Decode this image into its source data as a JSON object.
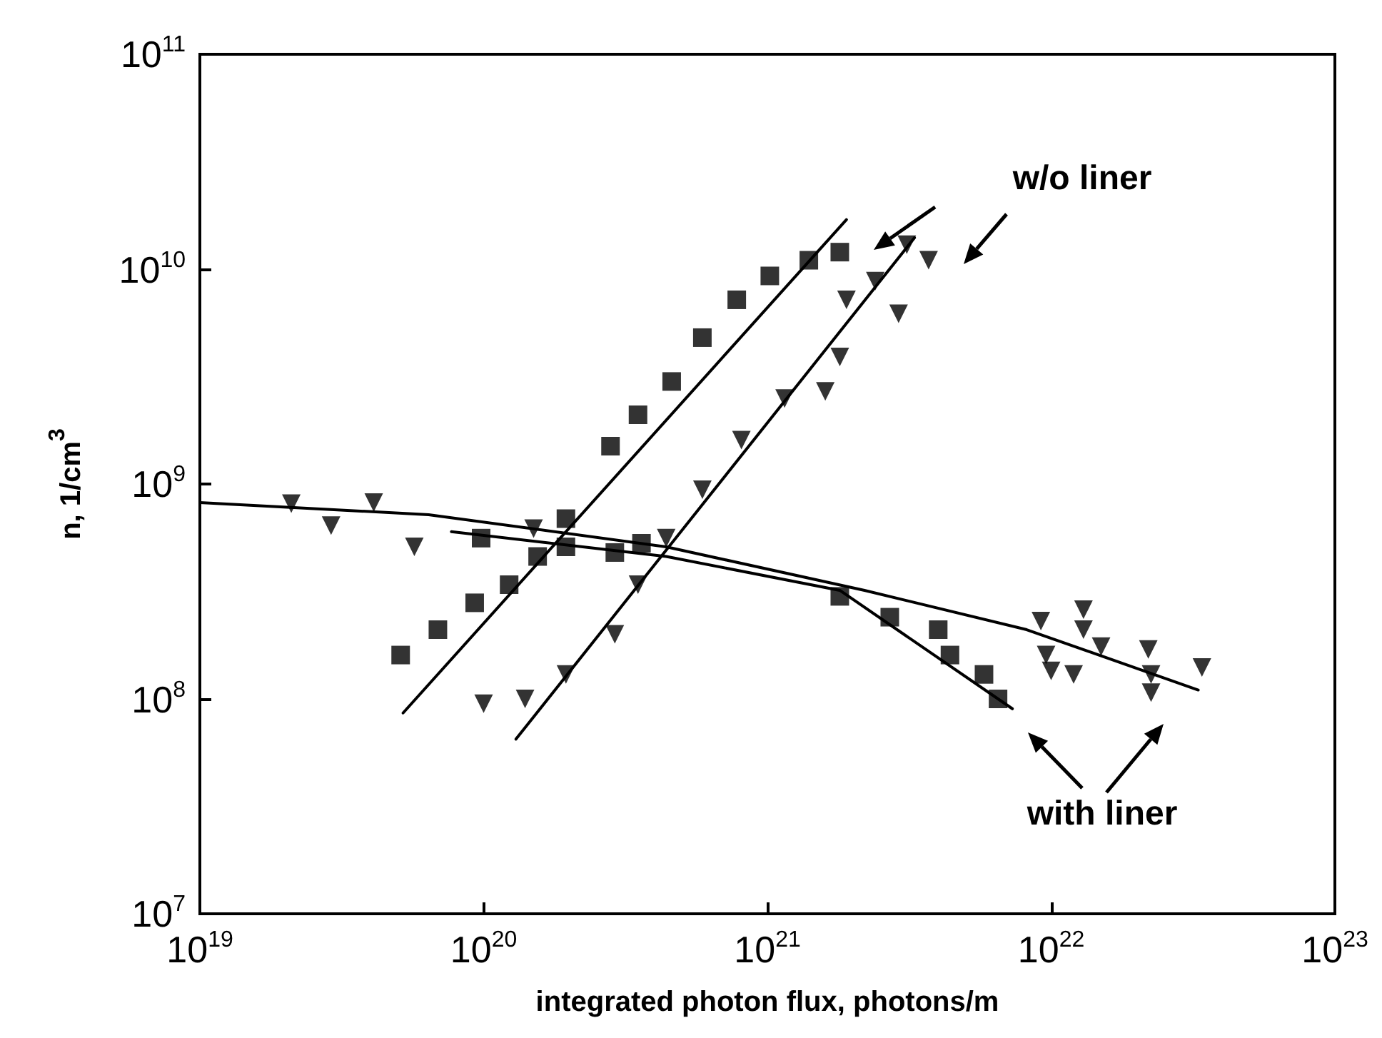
{
  "chart_data": {
    "type": "scatter",
    "xlabel": "integrated photon flux, photons/m",
    "ylabel": "n, 1/cm$^{3}$",
    "log": "xy",
    "xlim": [
      1e+19,
      1e+23
    ],
    "ylim": [
      10000000.0,
      100000000000.0
    ],
    "xticks": [
      {
        "value": 1e+19,
        "label": "10$^{19}$"
      },
      {
        "value": 1e+20,
        "label": "10$^{20}$"
      },
      {
        "value": 1e+21,
        "label": "10$^{21}$"
      },
      {
        "value": 1e+22,
        "label": "10$^{22}$"
      },
      {
        "value": 1e+23,
        "label": "10$^{23}$"
      }
    ],
    "yticks": [
      {
        "value": 10000000.0,
        "label": "10$^{7}$"
      },
      {
        "value": 100000000.0,
        "label": "10$^{8}$"
      },
      {
        "value": 1000000000.0,
        "label": "10$^{9}$"
      },
      {
        "value": 10000000000.0,
        "label": "10$^{10}$"
      },
      {
        "value": 100000000000.0,
        "label": "10$^{11}$"
      }
    ],
    "grid": false,
    "annotations": [
      "w/o liner",
      "with liner"
    ],
    "series": [
      {
        "type": "scatter",
        "marker": "square",
        "color": "#000000",
        "x": [
          5.1e+19,
          6.9e+19,
          9.3e+19,
          1.23e+20,
          1.55e+20,
          1.95e+20,
          2.8e+20,
          3.5e+20,
          4.6e+20,
          5.9e+20,
          7.8e+20,
          1.02e+21,
          1.4e+21,
          1.8e+21
        ],
        "values": [
          160000000.0,
          210000000.0,
          280000000.0,
          340000000.0,
          460000000.0,
          690000000.0,
          1500000000.0,
          2100000000.0,
          3000000000.0,
          4800000000.0,
          7200000000.0,
          9300000000.0,
          11000000000.0,
          12000000000.0
        ]
      },
      {
        "type": "scatter",
        "marker": "triangle",
        "color": "#000000",
        "x": [
          1e+20,
          1.4e+20,
          1.95e+20,
          2.9e+20,
          3.5e+20,
          4.4e+20,
          5.9e+20,
          8.1e+20,
          1.15e+21,
          1.6e+21,
          1.8e+21,
          1.9e+21,
          2.4e+21,
          2.9e+21,
          3.1e+21,
          3.7e+21
        ],
        "values": [
          95000000.0,
          100000000.0,
          130000000.0,
          200000000.0,
          340000000.0,
          560000000.0,
          940000000.0,
          1600000000.0,
          2500000000.0,
          2700000000.0,
          3900000000.0,
          7200000000.0,
          8800000000.0,
          6200000000.0,
          13000000000.0,
          11000000000.0
        ]
      },
      {
        "type": "scatter",
        "marker": "square",
        "color": "#000000",
        "x": [
          9.8e+19,
          1.95e+20,
          2.9e+20,
          3.6e+20,
          1.8e+21,
          2.7e+21,
          4e+21,
          4.4e+21,
          5.8e+21,
          6.5e+21
        ],
        "values": [
          560000000.0,
          510000000.0,
          480000000.0,
          530000000.0,
          300000000.0,
          240000000.0,
          210000000.0,
          160000000.0,
          130000000.0,
          100000000.0
        ]
      },
      {
        "type": "scatter",
        "marker": "triangle",
        "color": "#000000",
        "x": [
          2.1e+19,
          2.9e+19,
          4.1e+19,
          5.7e+19,
          1.5e+20,
          9.2e+21,
          9.6e+21,
          1e+22,
          1.2e+22,
          1.3e+22,
          1.3e+22,
          1.5e+22,
          2.2e+22,
          2.25e+22,
          2.25e+22,
          3.4e+22
        ],
        "values": [
          810000000.0,
          640000000.0,
          820000000.0,
          510000000.0,
          620000000.0,
          230000000.0,
          160000000.0,
          135000000.0,
          130000000.0,
          260000000.0,
          210000000.0,
          175000000.0,
          170000000.0,
          130000000.0,
          107000000.0,
          140000000.0
        ]
      },
      {
        "type": "line",
        "marker": "none",
        "color": "#000000",
        "x": [
          5.2e+19,
          1.9e+21
        ],
        "values": [
          86000000.0,
          17000000000.0
        ]
      },
      {
        "type": "line",
        "marker": "none",
        "color": "#000000",
        "x": [
          1.3e+20,
          3.3e+21
        ],
        "values": [
          65000000.0,
          14000000000.0
        ]
      },
      {
        "type": "line",
        "marker": "none",
        "color": "#000000",
        "x": [
          7.7e+19,
          4.4e+20,
          1.8e+21,
          7.3e+21
        ],
        "values": [
          600000000.0,
          460000000.0,
          320000000.0,
          90000000.0
        ]
      },
      {
        "type": "line",
        "marker": "none",
        "color": "#000000",
        "x": [
          1e+19,
          6.4e+19,
          4.4e+20,
          2.2e+21,
          8.2e+21,
          3.3e+22
        ],
        "values": [
          820000000.0,
          720000000.0,
          510000000.0,
          320000000.0,
          210000000.0,
          110000000.0
        ]
      }
    ]
  }
}
